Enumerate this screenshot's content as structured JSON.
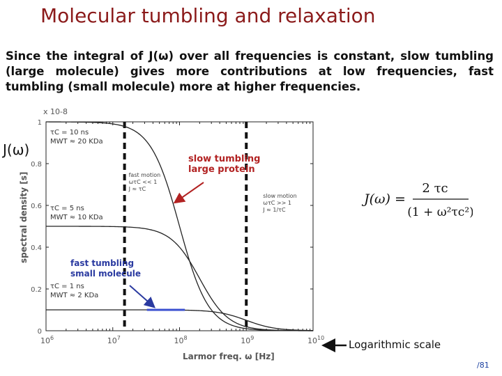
{
  "slide": {
    "title": "Molecular tumbling and relaxation",
    "intro": "Since the integral of J(ω) over all frequencies is constant, slow tumbling (large molecule) gives more contributions at low frequencies, fast tumbling (small molecule) more at higher frequencies.",
    "j_label": "J(ω)",
    "log_note": "Logarithmic scale",
    "page": "/81"
  },
  "formula": {
    "lhs": "J(ω) =",
    "numerator": "2 τc",
    "denominator": "(1 + ω²τc²)"
  },
  "chart_data": {
    "type": "line",
    "xscale": "log",
    "xlim": [
      1000000,
      10000000000
    ],
    "ylim": [
      0,
      1.0
    ],
    "y_multiplier": "x 10-8",
    "xlabel": "Larmor freq. ω [Hz]",
    "ylabel": "spectral density [s]",
    "x_ticks": [
      {
        "base": "10",
        "exp": "6",
        "value": 1000000
      },
      {
        "base": "10",
        "exp": "7",
        "value": 10000000
      },
      {
        "base": "10",
        "exp": "8",
        "value": 100000000
      },
      {
        "base": "10",
        "exp": "9",
        "value": 1000000000
      },
      {
        "base": "10",
        "exp": "10",
        "value": 10000000000
      }
    ],
    "y_ticks": [
      {
        "label": "0",
        "value": 0
      },
      {
        "label": "0.2",
        "value": 0.2
      },
      {
        "label": "0.4",
        "value": 0.4
      },
      {
        "label": "0.6",
        "value": 0.6
      },
      {
        "label": "0.8",
        "value": 0.8
      },
      {
        "label": "1",
        "value": 1.0
      }
    ],
    "series": [
      {
        "tau_c": 1e-08,
        "label_lines": [
          "τC = 10 ns",
          "MWT ≈ 20 KDa"
        ]
      },
      {
        "tau_c": 5e-09,
        "label_lines": [
          "τC = 5 ns",
          "MWT ≈ 10 KDa"
        ]
      },
      {
        "tau_c": 1e-09,
        "label_lines": [
          "τC = 1 ns",
          "MWT ≈ 2 KDa"
        ]
      }
    ],
    "dashed_lines": [
      {
        "x": 15000000,
        "labels": [
          "fast motion",
          "ωτC << 1",
          "J ≈ τC"
        ]
      },
      {
        "x": 1000000000,
        "labels": [
          "slow motion",
          "ωτC >> 1",
          "J ≈ 1/τC"
        ]
      }
    ],
    "annotations": [
      {
        "lines": [
          "slow tumbling",
          "large protein"
        ],
        "color": "#b22222"
      },
      {
        "lines": [
          "fast tumbling",
          "small molecule"
        ],
        "color": "#2a3aa0"
      }
    ]
  }
}
